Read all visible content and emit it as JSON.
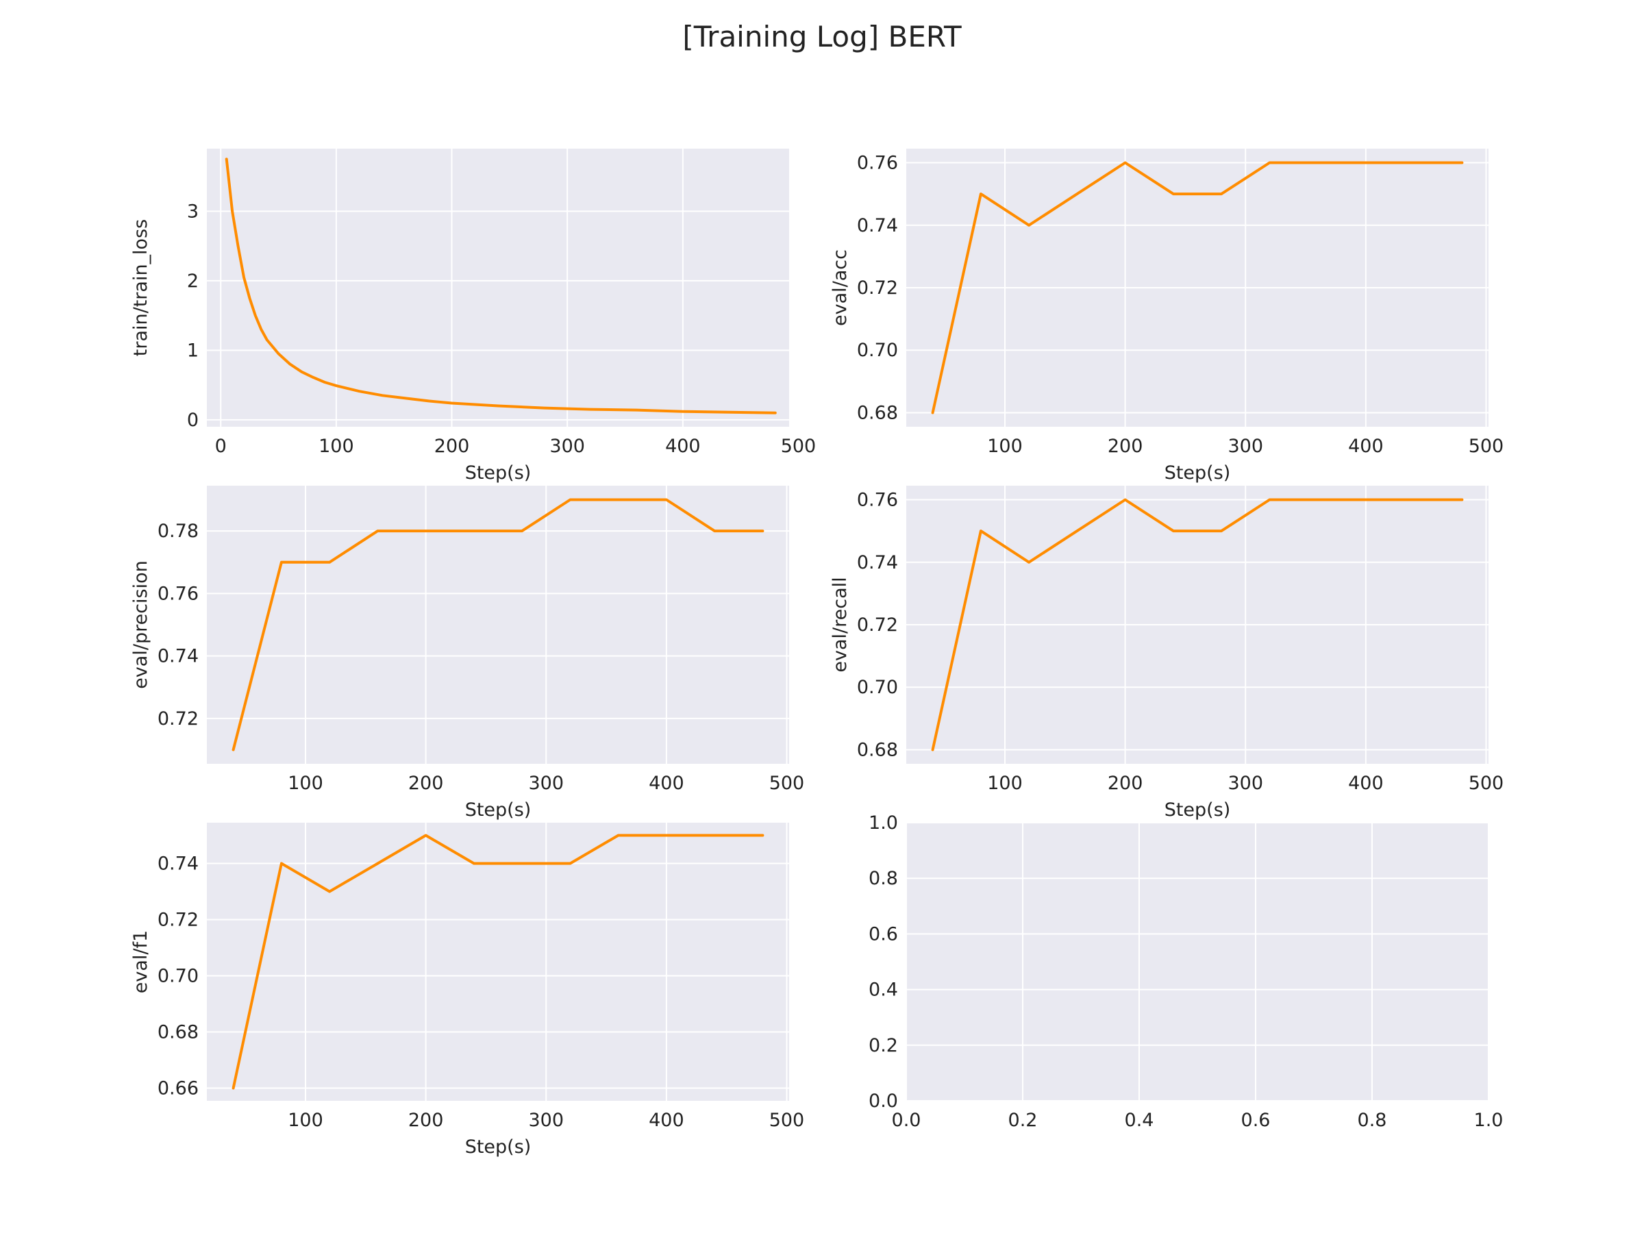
{
  "figure_title": "[Training Log] BERT",
  "colors": {
    "series": "#ff8c00",
    "panel_background": "#e9e9f1",
    "grid": "#ffffff"
  },
  "chart_data": [
    {
      "type": "line",
      "title": "",
      "xlabel": "Step(s)",
      "ylabel": "train/train_loss",
      "xlim": [
        -12,
        492
      ],
      "ylim": [
        -0.1,
        3.9
      ],
      "xticks": [
        0,
        100,
        200,
        300,
        400,
        500
      ],
      "yticks": [
        0,
        1,
        2,
        3
      ],
      "grid": true,
      "series": [
        {
          "x": [
            5,
            10,
            15,
            20,
            25,
            30,
            35,
            40,
            50,
            60,
            70,
            80,
            90,
            100,
            120,
            140,
            160,
            180,
            200,
            240,
            280,
            320,
            360,
            400,
            440,
            480
          ],
          "y": [
            3.75,
            3.0,
            2.5,
            2.05,
            1.75,
            1.5,
            1.3,
            1.15,
            0.95,
            0.8,
            0.69,
            0.61,
            0.54,
            0.49,
            0.41,
            0.35,
            0.31,
            0.27,
            0.24,
            0.2,
            0.17,
            0.15,
            0.14,
            0.12,
            0.11,
            0.1
          ]
        }
      ]
    },
    {
      "type": "line",
      "title": "",
      "xlabel": "Step(s)",
      "ylabel": "eval/acc",
      "xlim": [
        18,
        502
      ],
      "ylim": [
        0.6755,
        0.7645
      ],
      "xticks": [
        100,
        200,
        300,
        400,
        500
      ],
      "yticks": [
        0.68,
        0.7,
        0.72,
        0.74,
        0.76
      ],
      "ytick_labels": [
        "0.68",
        "0.70",
        "0.72",
        "0.74",
        "0.76"
      ],
      "grid": true,
      "series": [
        {
          "x": [
            40,
            80,
            120,
            160,
            200,
            240,
            280,
            320,
            360,
            400,
            440,
            480
          ],
          "y": [
            0.68,
            0.75,
            0.74,
            0.75,
            0.76,
            0.75,
            0.75,
            0.76,
            0.76,
            0.76,
            0.76,
            0.76
          ]
        }
      ]
    },
    {
      "type": "line",
      "title": "",
      "xlabel": "Step(s)",
      "ylabel": "eval/precision",
      "xlim": [
        18,
        502
      ],
      "ylim": [
        0.7055,
        0.7945
      ],
      "xticks": [
        100,
        200,
        300,
        400,
        500
      ],
      "yticks": [
        0.72,
        0.74,
        0.76,
        0.78
      ],
      "ytick_labels": [
        "0.72",
        "0.74",
        "0.76",
        "0.78"
      ],
      "grid": true,
      "series": [
        {
          "x": [
            40,
            80,
            120,
            160,
            200,
            240,
            280,
            320,
            360,
            400,
            440,
            480
          ],
          "y": [
            0.71,
            0.77,
            0.77,
            0.78,
            0.78,
            0.78,
            0.78,
            0.79,
            0.79,
            0.79,
            0.78,
            0.78
          ]
        }
      ]
    },
    {
      "type": "line",
      "title": "",
      "xlabel": "Step(s)",
      "ylabel": "eval/recall",
      "xlim": [
        18,
        502
      ],
      "ylim": [
        0.6755,
        0.7645
      ],
      "xticks": [
        100,
        200,
        300,
        400,
        500
      ],
      "yticks": [
        0.68,
        0.7,
        0.72,
        0.74,
        0.76
      ],
      "ytick_labels": [
        "0.68",
        "0.70",
        "0.72",
        "0.74",
        "0.76"
      ],
      "grid": true,
      "series": [
        {
          "x": [
            40,
            80,
            120,
            160,
            200,
            240,
            280,
            320,
            360,
            400,
            440,
            480
          ],
          "y": [
            0.68,
            0.75,
            0.74,
            0.75,
            0.76,
            0.75,
            0.75,
            0.76,
            0.76,
            0.76,
            0.76,
            0.76
          ]
        }
      ]
    },
    {
      "type": "line",
      "title": "",
      "xlabel": "Step(s)",
      "ylabel": "eval/f1",
      "xlim": [
        18,
        502
      ],
      "ylim": [
        0.6555,
        0.7545
      ],
      "xticks": [
        100,
        200,
        300,
        400,
        500
      ],
      "yticks": [
        0.66,
        0.68,
        0.7,
        0.72,
        0.74
      ],
      "ytick_labels": [
        "0.66",
        "0.68",
        "0.70",
        "0.72",
        "0.74"
      ],
      "grid": true,
      "series": [
        {
          "x": [
            40,
            80,
            120,
            160,
            200,
            240,
            280,
            320,
            360,
            400,
            440,
            480
          ],
          "y": [
            0.66,
            0.74,
            0.73,
            0.74,
            0.75,
            0.74,
            0.74,
            0.74,
            0.75,
            0.75,
            0.75,
            0.75
          ]
        }
      ]
    },
    {
      "type": "line",
      "title": "",
      "xlabel": "",
      "ylabel": "",
      "xlim": [
        0,
        1
      ],
      "ylim": [
        0,
        1
      ],
      "xticks": [
        0,
        0.2,
        0.4,
        0.6,
        0.8,
        1.0
      ],
      "xtick_labels": [
        "0.0",
        "0.2",
        "0.4",
        "0.6",
        "0.8",
        "1.0"
      ],
      "yticks": [
        0,
        0.2,
        0.4,
        0.6,
        0.8,
        1.0
      ],
      "ytick_labels": [
        "0.0",
        "0.2",
        "0.4",
        "0.6",
        "0.8",
        "1.0"
      ],
      "grid": true,
      "series": []
    }
  ]
}
